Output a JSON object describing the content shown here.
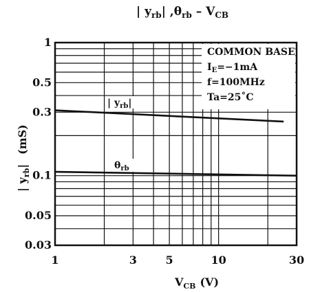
{
  "chart_data": {
    "type": "line",
    "title": {
      "part1": "| y",
      "part1_sub": "rb",
      "part2": "| ,θ",
      "part2_sub": "rb",
      "part3": "  –  V",
      "part3_sub": "CB"
    },
    "x_axis": {
      "label_main": "V",
      "label_sub": "CB",
      "label_unit": "(V)",
      "scale": "log",
      "range": [
        1,
        30
      ],
      "ticks": [
        1,
        3,
        5,
        10,
        30
      ],
      "tick_labels": [
        "1",
        "3",
        "5",
        "10",
        "30"
      ],
      "grid": [
        1,
        2,
        3,
        4,
        5,
        6,
        7,
        8,
        9,
        10,
        20,
        30
      ]
    },
    "y_axis": {
      "label_main": "| y",
      "label_sub": "rb",
      "label_main_tail": "|",
      "label_unit": "(mS)",
      "scale": "log",
      "range": [
        0.03,
        1
      ],
      "ticks": [
        0.03,
        0.05,
        0.1,
        0.3,
        0.5,
        1
      ],
      "tick_labels": [
        "0.03",
        "0.05",
        "0.1",
        "0.3",
        "0.5",
        "1"
      ],
      "grid": [
        0.03,
        0.04,
        0.05,
        0.06,
        0.07,
        0.08,
        0.09,
        0.1,
        0.2,
        0.3,
        0.4,
        0.5,
        0.6,
        0.7,
        0.8,
        0.9,
        1
      ]
    },
    "series": [
      {
        "name": "| y",
        "name_sub": "rb",
        "name_tail": "|",
        "x": [
          1,
          25
        ],
        "y": [
          0.31,
          0.255
        ]
      },
      {
        "name": "θ",
        "name_sub": "rb",
        "name_tail": "",
        "x": [
          1,
          30
        ],
        "y": [
          0.107,
          0.1
        ]
      }
    ],
    "conditions": {
      "line1": "COMMON BASE",
      "line2_main": "I",
      "line2_sub": "E",
      "line2_tail": "=−1mA",
      "line3": "f=100MHz",
      "line4": "Ta=25˚C"
    }
  },
  "colors": {
    "line": "#111111",
    "grid": "#111111",
    "background": "#ffffff"
  }
}
